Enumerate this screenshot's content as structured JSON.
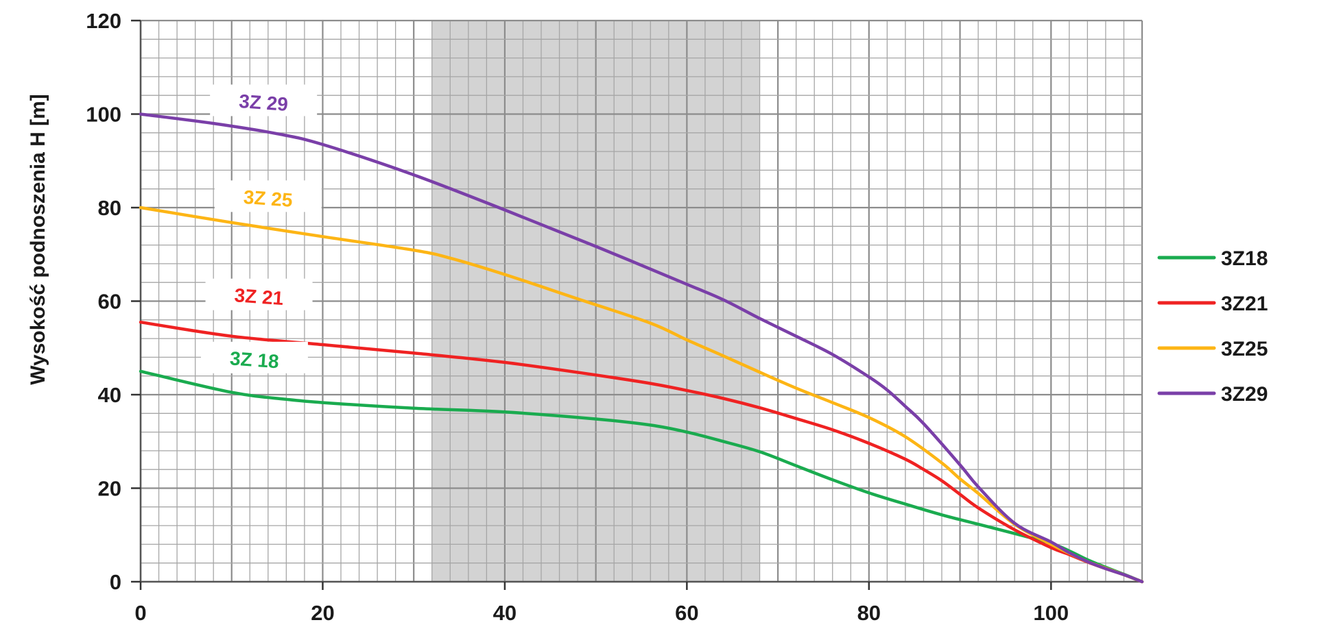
{
  "chart_data": {
    "type": "line",
    "title": "",
    "xlabel": "",
    "ylabel": "Wysokość podnoszenia H [m]",
    "xlim": [
      0,
      110
    ],
    "ylim": [
      0,
      120
    ],
    "x_ticks": [
      0,
      20,
      40,
      60,
      80,
      100
    ],
    "y_ticks": [
      0,
      20,
      40,
      60,
      80,
      100,
      120
    ],
    "x_tick_labels": [
      "0",
      "20",
      "40",
      "60",
      "80",
      "100"
    ],
    "y_tick_labels": [
      "0",
      "20",
      "40",
      "60",
      "80",
      "100",
      "120"
    ],
    "grid": true,
    "legend_position": "right",
    "shaded_region": {
      "x_start": 32,
      "x_end": 68,
      "color": "#d3d3d3"
    },
    "series": [
      {
        "name": "3Z18",
        "curve_label": "3Z 18",
        "color": "#1aab4f",
        "points": [
          [
            0,
            45
          ],
          [
            10,
            40.5
          ],
          [
            16,
            39
          ],
          [
            20,
            38.3
          ],
          [
            30,
            37.1
          ],
          [
            40,
            36.3
          ],
          [
            50,
            34.8
          ],
          [
            56,
            33.5
          ],
          [
            60,
            32
          ],
          [
            64,
            30
          ],
          [
            68,
            27.8
          ],
          [
            72,
            24.8
          ],
          [
            76,
            21.8
          ],
          [
            80,
            19
          ],
          [
            84,
            16.6
          ],
          [
            88,
            14.3
          ],
          [
            92,
            12.3
          ],
          [
            96,
            10.3
          ],
          [
            100,
            8.2
          ],
          [
            102,
            6.6
          ],
          [
            104,
            4.7
          ],
          [
            106,
            3.1
          ],
          [
            108,
            1.6
          ],
          [
            110,
            0
          ]
        ],
        "label_x": 12.5,
        "label_y": 47.5
      },
      {
        "name": "3Z21",
        "curve_label": "3Z 21",
        "color": "#ef2222",
        "points": [
          [
            0,
            55.5
          ],
          [
            10,
            52.5
          ],
          [
            20,
            50.7
          ],
          [
            30,
            48.9
          ],
          [
            40,
            46.9
          ],
          [
            50,
            44.2
          ],
          [
            56,
            42.4
          ],
          [
            60,
            40.9
          ],
          [
            64,
            39.2
          ],
          [
            68,
            37.2
          ],
          [
            72,
            34.9
          ],
          [
            76,
            32.5
          ],
          [
            80,
            29.6
          ],
          [
            84,
            26.2
          ],
          [
            86,
            24
          ],
          [
            88,
            21.6
          ],
          [
            90,
            18.7
          ],
          [
            92,
            15.8
          ],
          [
            96,
            11.1
          ],
          [
            100,
            7.3
          ],
          [
            102,
            5.8
          ],
          [
            104,
            4.2
          ],
          [
            106,
            2.8
          ],
          [
            108,
            1.5
          ],
          [
            110,
            0
          ]
        ],
        "label_x": 13,
        "label_y": 61
      },
      {
        "name": "3Z25",
        "curve_label": "3Z 25",
        "color": "#fdb515",
        "points": [
          [
            0,
            80
          ],
          [
            10,
            76.8
          ],
          [
            20,
            73.8
          ],
          [
            30,
            70.9
          ],
          [
            34,
            69.2
          ],
          [
            40,
            65.7
          ],
          [
            48,
            60.5
          ],
          [
            56,
            55.3
          ],
          [
            60,
            51.7
          ],
          [
            64,
            48.3
          ],
          [
            68,
            44.8
          ],
          [
            72,
            41.4
          ],
          [
            76,
            38.3
          ],
          [
            80,
            35.1
          ],
          [
            84,
            31
          ],
          [
            88,
            25.4
          ],
          [
            90,
            22
          ],
          [
            92,
            18.9
          ],
          [
            96,
            12.3
          ],
          [
            100,
            8
          ],
          [
            102,
            6.1
          ],
          [
            104,
            4.3
          ],
          [
            106,
            2.9
          ],
          [
            108,
            1.5
          ],
          [
            110,
            0
          ]
        ],
        "label_x": 14,
        "label_y": 82
      },
      {
        "name": "3Z29",
        "curve_label": "3Z 29",
        "color": "#7a3fa8",
        "points": [
          [
            0,
            100
          ],
          [
            8,
            98
          ],
          [
            15,
            95.8
          ],
          [
            20,
            93.5
          ],
          [
            30,
            87
          ],
          [
            40,
            79.5
          ],
          [
            50,
            71.7
          ],
          [
            60,
            63.6
          ],
          [
            64,
            60.3
          ],
          [
            68,
            56.3
          ],
          [
            72,
            52.5
          ],
          [
            76,
            48.6
          ],
          [
            80,
            43.8
          ],
          [
            82,
            41
          ],
          [
            84,
            37.5
          ],
          [
            86,
            33.8
          ],
          [
            90,
            25
          ],
          [
            92,
            20.3
          ],
          [
            96,
            12.5
          ],
          [
            100,
            8.5
          ],
          [
            102,
            6.2
          ],
          [
            104,
            4.3
          ],
          [
            106,
            2.8
          ],
          [
            108,
            1.5
          ],
          [
            110,
            0
          ]
        ],
        "label_x": 13.5,
        "label_y": 102.5
      }
    ],
    "legend": [
      {
        "label": "3Z18",
        "color": "#1aab4f"
      },
      {
        "label": "3Z21",
        "color": "#ef2222"
      },
      {
        "label": "3Z25",
        "color": "#fdb515"
      },
      {
        "label": "3Z29",
        "color": "#7a3fa8"
      }
    ]
  }
}
